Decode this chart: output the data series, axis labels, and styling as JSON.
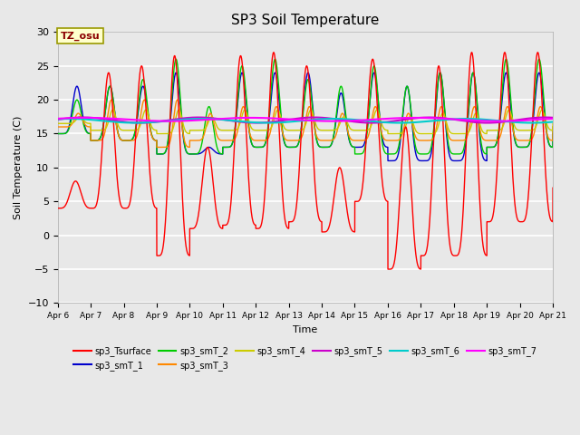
{
  "title": "SP3 Soil Temperature",
  "xlabel": "Time",
  "ylabel": "Soil Temperature (C)",
  "ylim": [
    -10,
    30
  ],
  "xlim": [
    0,
    360
  ],
  "xtick_labels": [
    "Apr 6",
    "Apr 7",
    "Apr 8",
    "Apr 9",
    "Apr 10",
    "Apr 11",
    "Apr 12",
    "Apr 13",
    "Apr 14",
    "Apr 15",
    "Apr 16",
    "Apr 17",
    "Apr 18",
    "Apr 19",
    "Apr 20",
    "Apr 21"
  ],
  "xtick_positions": [
    0,
    24,
    48,
    72,
    96,
    120,
    144,
    168,
    192,
    216,
    240,
    264,
    288,
    312,
    336,
    360
  ],
  "yticks": [
    -10,
    -5,
    0,
    5,
    10,
    15,
    20,
    25,
    30
  ],
  "annotation_text": "TZ_osu",
  "annotation_color": "#8B0000",
  "annotation_bg": "#FFFFCC",
  "annotation_border": "#999900",
  "series_colors": {
    "sp3_Tsurface": "#FF0000",
    "sp3_smT_1": "#0000CC",
    "sp3_smT_2": "#00CC00",
    "sp3_smT_3": "#FF8800",
    "sp3_smT_4": "#CCCC00",
    "sp3_smT_5": "#CC00CC",
    "sp3_smT_6": "#00CCCC",
    "sp3_smT_7": "#FF00FF"
  },
  "legend_order": [
    "sp3_Tsurface",
    "sp3_smT_1",
    "sp3_smT_2",
    "sp3_smT_3",
    "sp3_smT_4",
    "sp3_smT_5",
    "sp3_smT_6",
    "sp3_smT_7"
  ],
  "bg_color": "#E8E8E8",
  "grid_color": "#FFFFFF",
  "linewidth": 1.0,
  "figsize": [
    6.4,
    4.8
  ],
  "dpi": 100
}
